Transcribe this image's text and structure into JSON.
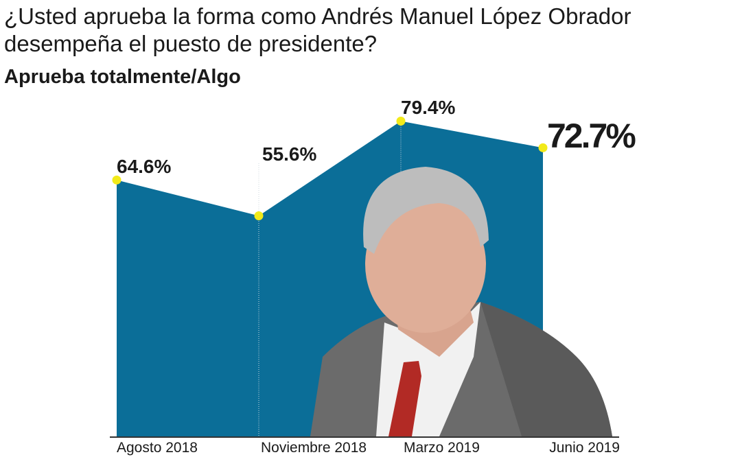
{
  "header": {
    "title": "¿Usted aprueba la forma como Andrés Manuel López Obrador desempeña el puesto de presidente?",
    "subtitle": "Aprueba totalmente/Algo"
  },
  "chart_data": {
    "type": "area",
    "title": "¿Usted aprueba la forma como Andrés Manuel López Obrador desempeña el puesto de presidente?",
    "subtitle": "Aprueba totalmente/Algo",
    "categories": [
      "Agosto  2018",
      "Noviembre 2018",
      "Marzo 2019",
      "Junio 2019"
    ],
    "series": [
      {
        "values": [
          64.6,
          55.6,
          79.4,
          72.7
        ]
      }
    ],
    "data_labels": [
      "64.6%",
      "55.6%",
      "79.4%",
      "72.7%"
    ],
    "ylim": [
      0,
      79.4
    ],
    "grid": false,
    "fill_color": "#0b6e98",
    "marker_color": "#f2ea1a",
    "legend": "none"
  }
}
